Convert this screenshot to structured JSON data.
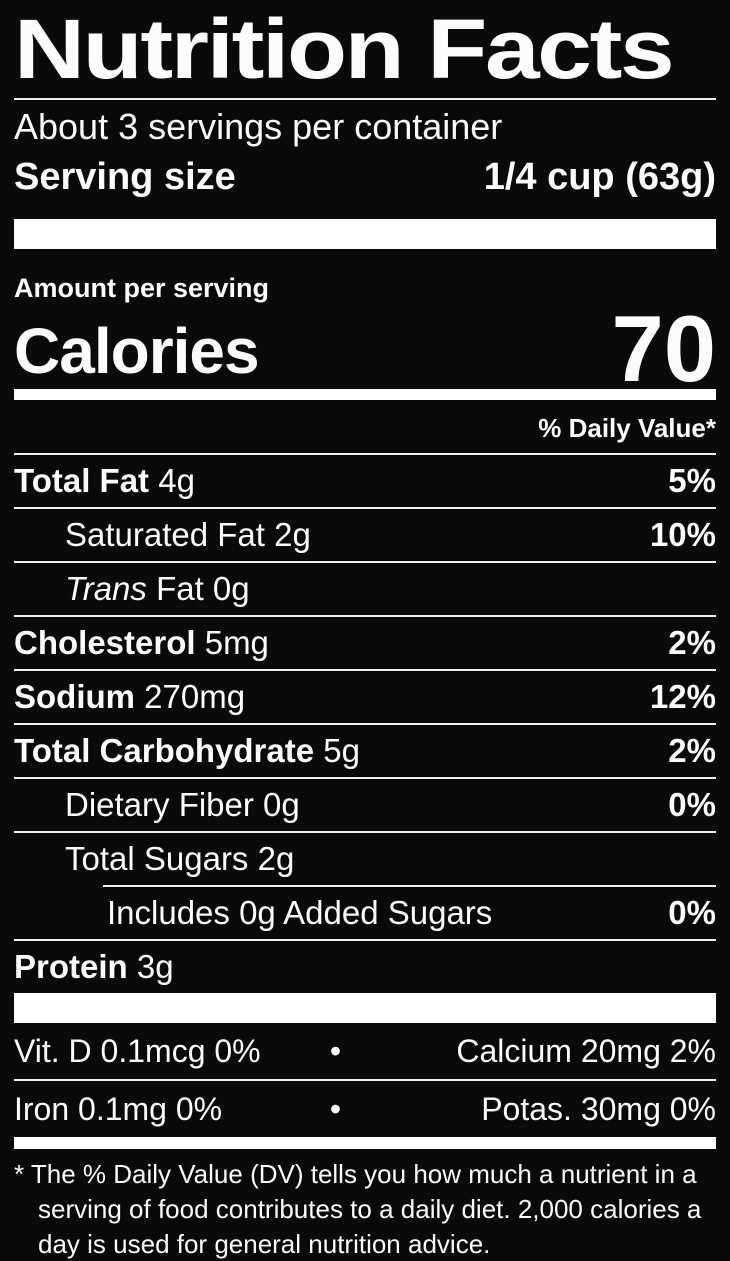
{
  "colors": {
    "background": "#0a0a0a",
    "text": "#fcfcfc",
    "rule": "#f0f0f0",
    "bar": "#ffffff"
  },
  "label": {
    "title": "Nutrition Facts",
    "servings_per_container": "About 3 servings per container",
    "serving_size_label": "Serving size",
    "serving_size_value": "1/4 cup (63g)",
    "amount_per_serving_label": "Amount per serving",
    "calories_label": "Calories",
    "calories_value": "70",
    "daily_value_header": "% Daily Value*",
    "nutrients": [
      {
        "level": 0,
        "rule_level": 0,
        "name_parts": [
          {
            "text": "Total Fat",
            "bold": true
          },
          {
            "text": " 4g"
          }
        ],
        "dv": "5%"
      },
      {
        "level": 1,
        "rule_level": 0,
        "name_parts": [
          {
            "text": "Saturated Fat 2g"
          }
        ],
        "dv": "10%"
      },
      {
        "level": 1,
        "rule_level": 0,
        "name_parts": [
          {
            "text": "Trans",
            "italic": true
          },
          {
            "text": " Fat 0g"
          }
        ],
        "dv": ""
      },
      {
        "level": 0,
        "rule_level": 0,
        "name_parts": [
          {
            "text": "Cholesterol",
            "bold": true
          },
          {
            "text": " 5mg"
          }
        ],
        "dv": "2%"
      },
      {
        "level": 0,
        "rule_level": 0,
        "name_parts": [
          {
            "text": "Sodium",
            "bold": true
          },
          {
            "text": " 270mg"
          }
        ],
        "dv": "12%"
      },
      {
        "level": 0,
        "rule_level": 0,
        "name_parts": [
          {
            "text": "Total Carbohydrate",
            "bold": true
          },
          {
            "text": " 5g"
          }
        ],
        "dv": "2%"
      },
      {
        "level": 1,
        "rule_level": 0,
        "name_parts": [
          {
            "text": "Dietary Fiber 0g"
          }
        ],
        "dv": "0%"
      },
      {
        "level": 1,
        "rule_level": 0,
        "name_parts": [
          {
            "text": "Total Sugars 2g"
          }
        ],
        "dv": ""
      },
      {
        "level": 2,
        "rule_level": 2,
        "name_parts": [
          {
            "text": "Includes 0g Added Sugars"
          }
        ],
        "dv": "0%"
      },
      {
        "level": 0,
        "rule_level": 0,
        "name_parts": [
          {
            "text": "Protein",
            "bold": true
          },
          {
            "text": " 3g"
          }
        ],
        "dv": ""
      }
    ],
    "micronutrients": {
      "separator": "•",
      "rows": [
        {
          "left": "Vit. D 0.1mcg 0%",
          "right": "Calcium 20mg 2%"
        },
        {
          "left": "Iron 0.1mg 0%",
          "right": "Potas. 30mg 0%"
        }
      ]
    },
    "footnote_marker": "*",
    "footnote": "The % Daily Value (DV) tells you how much a nutrient in a serving of food contributes to a daily diet. 2,000 calories a day is used for general nutrition advice."
  }
}
